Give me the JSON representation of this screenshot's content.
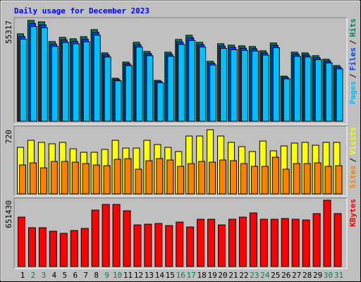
{
  "title": "Daily usage for December 2023",
  "legend_separator": "/",
  "categories": [
    "1",
    "2",
    "3",
    "4",
    "5",
    "6",
    "7",
    "8",
    "9",
    "10",
    "11",
    "12",
    "13",
    "14",
    "15",
    "16",
    "17",
    "18",
    "19",
    "20",
    "21",
    "22",
    "23",
    "24",
    "25",
    "26",
    "27",
    "28",
    "29",
    "30",
    "31"
  ],
  "category_colors": [
    "#000000",
    "#00805c",
    "#00805c",
    "#000000",
    "#000000",
    "#000000",
    "#000000",
    "#000000",
    "#00805c",
    "#00805c",
    "#000000",
    "#000000",
    "#000000",
    "#000000",
    "#000000",
    "#00805c",
    "#00805c",
    "#000000",
    "#000000",
    "#000000",
    "#000000",
    "#000000",
    "#00805c",
    "#00805c",
    "#000000",
    "#000000",
    "#000000",
    "#000000",
    "#000000",
    "#00805c",
    "#00805c"
  ],
  "chart_data": [
    {
      "type": "bar",
      "ylim": [
        0,
        55317
      ],
      "yticks": [
        55317
      ],
      "series": [
        {
          "name": "Pages",
          "color": "#00c0ff",
          "values": [
            45085,
            51998,
            51269,
            41087,
            43270,
            42543,
            43634,
            47270,
            35271,
            22180,
            30543,
            40725,
            35997,
            21090,
            35634,
            42179,
            44361,
            40725,
            30907,
            39998,
            39270,
            38907,
            38543,
            36362,
            40362,
            23272,
            35634,
            35271,
            33817,
            31998,
            28725
          ]
        },
        {
          "name": "Files",
          "color": "#0040ff",
          "values": [
            46524,
            53657,
            52906,
            42399,
            44651,
            43900,
            45026,
            48778,
            36396,
            22888,
            31518,
            42024,
            37146,
            21763,
            36772,
            43525,
            45777,
            42024,
            31894,
            41274,
            40524,
            40148,
            39773,
            37523,
            41650,
            24014,
            36772,
            36396,
            34896,
            33019,
            29642
          ]
        },
        {
          "name": "Hits",
          "color": "#00805c",
          "values": [
            47963,
            55317,
            54542,
            43710,
            46032,
            45258,
            46419,
            50287,
            37522,
            23596,
            32493,
            43324,
            38295,
            22436,
            37909,
            44871,
            47193,
            43324,
            32880,
            42551,
            41777,
            41390,
            41003,
            38683,
            42938,
            24757,
            37909,
            37522,
            35975,
            34040,
            30559
          ]
        }
      ]
    },
    {
      "type": "bar",
      "ylim": [
        0,
        720
      ],
      "yticks": [
        720
      ],
      "series": [
        {
          "name": "Sites",
          "color": "#ff8000",
          "values": [
            324,
            348,
            292,
            364,
            364,
            356,
            340,
            324,
            316,
            388,
            396,
            277,
            372,
            396,
            380,
            309,
            340,
            364,
            356,
            380,
            372,
            340,
            309,
            309,
            411,
            277,
            340,
            340,
            348,
            309,
            316
          ]
        },
        {
          "name": "Visits",
          "color": "#ffff00",
          "values": [
            522,
            601,
            578,
            562,
            578,
            506,
            467,
            467,
            499,
            601,
            514,
            514,
            601,
            554,
            522,
            475,
            649,
            649,
            720,
            649,
            578,
            530,
            475,
            593,
            483,
            538,
            570,
            578,
            546,
            578,
            578
          ]
        }
      ]
    },
    {
      "type": "bar",
      "ylim": [
        0,
        651430
      ],
      "yticks": [
        651430
      ],
      "series": [
        {
          "name": "KBytes",
          "color": "#ff0000",
          "values": [
            485100,
            381150,
            381150,
            346500,
            325710,
            353430,
            374220,
            554400,
            609840,
            609840,
            547470,
            408870,
            415800,
            422730,
            401940,
            436590,
            388080,
            464310,
            464310,
            408870,
            464310,
            485100,
            526680,
            464310,
            464310,
            471240,
            464310,
            457380,
            519750,
            651430,
            519750
          ]
        }
      ]
    }
  ]
}
